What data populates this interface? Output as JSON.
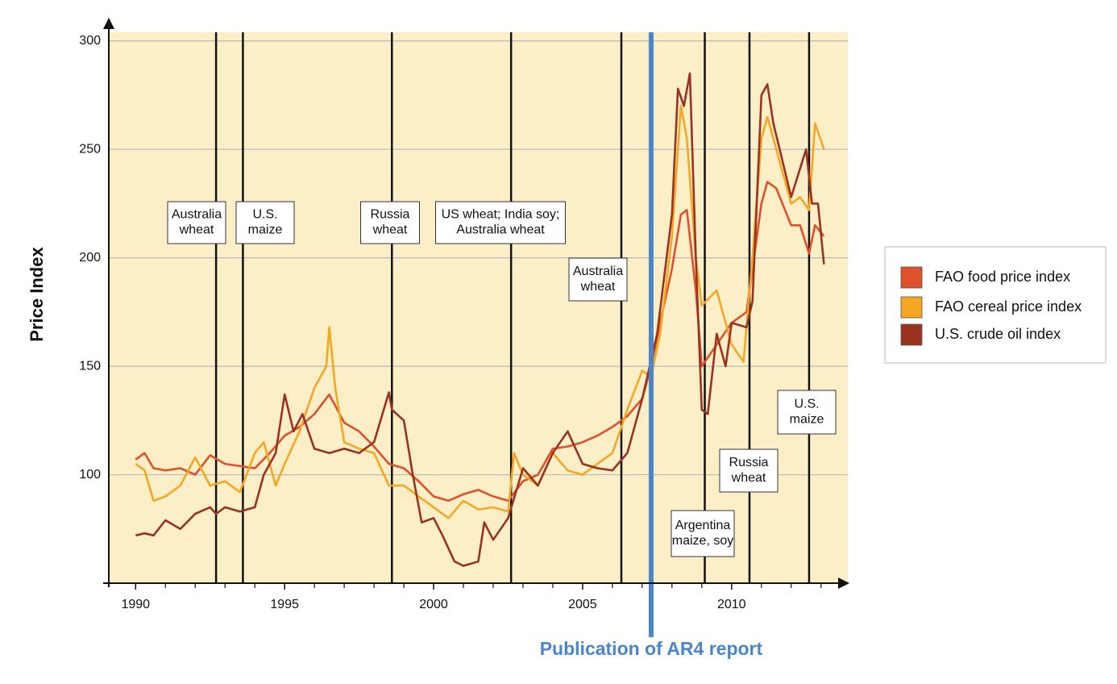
{
  "chart_data": {
    "type": "line",
    "ylabel": "Price Index",
    "xlim": [
      1989.1,
      2013.9
    ],
    "ylim": [
      50,
      304
    ],
    "xticks": [
      1990,
      1995,
      2000,
      2005,
      2010
    ],
    "xminorticks": [
      1991,
      1992,
      1993,
      1994,
      1996,
      1997,
      1998,
      1999,
      2001,
      2002,
      2003,
      2004,
      2006,
      2007,
      2008,
      2009,
      2011,
      2012,
      2013
    ],
    "yticks": [
      100,
      150,
      200,
      250,
      300
    ],
    "grid": true,
    "legend": "right",
    "series": [
      {
        "name": "FAO food price index",
        "color": "#e0502a",
        "x": [
          1990,
          1990.3,
          1990.6,
          1991,
          1991.5,
          1992,
          1992.5,
          1993,
          1993.5,
          1994,
          1994.5,
          1995,
          1995.5,
          1996,
          1996.5,
          1997,
          1997.5,
          1998,
          1998.5,
          1999,
          1999.5,
          2000,
          2000.5,
          2001,
          2001.5,
          2002,
          2002.5,
          2003,
          2003.5,
          2004,
          2004.5,
          2005,
          2005.5,
          2006,
          2006.5,
          2007,
          2007.3,
          2007.6,
          2008,
          2008.3,
          2008.5,
          2008.8,
          2009,
          2009.5,
          2010,
          2010.5,
          2011,
          2011.2,
          2011.5,
          2012,
          2012.3,
          2012.6,
          2012.8,
          2013.1
        ],
        "values": [
          107,
          110,
          103,
          102,
          103,
          100,
          109,
          105,
          104,
          103,
          110,
          118,
          122,
          128,
          137,
          124,
          120,
          113,
          105,
          103,
          97,
          90,
          88,
          91,
          93,
          90,
          88,
          97,
          100,
          112,
          113,
          115,
          118,
          122,
          127,
          135,
          150,
          170,
          195,
          220,
          222,
          185,
          150,
          160,
          170,
          175,
          225,
          235,
          232,
          215,
          215,
          202,
          215,
          210
        ]
      },
      {
        "name": "FAO cereal price index",
        "color": "#f5a623",
        "x": [
          1990,
          1990.3,
          1990.6,
          1991,
          1991.5,
          1992,
          1992.5,
          1993,
          1993.5,
          1994,
          1994.3,
          1994.7,
          1995,
          1995.5,
          1996,
          1996.4,
          1996.5,
          1996.7,
          1997,
          1997.5,
          1998,
          1998.5,
          1999,
          1999.5,
          2000,
          2000.5,
          2001,
          2001.5,
          2002,
          2002.5,
          2002.7,
          2003,
          2003.5,
          2004,
          2004.5,
          2005,
          2005.5,
          2006,
          2006.5,
          2007,
          2007.3,
          2007.6,
          2008,
          2008.3,
          2008.5,
          2008.8,
          2009,
          2009.5,
          2010,
          2010.4,
          2010.7,
          2011,
          2011.2,
          2011.5,
          2012,
          2012.3,
          2012.6,
          2012.8,
          2013.1
        ],
        "values": [
          105,
          102,
          88,
          90,
          95,
          108,
          95,
          97,
          92,
          110,
          115,
          95,
          105,
          120,
          140,
          150,
          168,
          140,
          115,
          112,
          110,
          95,
          95,
          90,
          85,
          80,
          88,
          84,
          85,
          83,
          110,
          100,
          95,
          110,
          102,
          100,
          105,
          110,
          130,
          148,
          145,
          165,
          210,
          270,
          255,
          200,
          178,
          185,
          160,
          152,
          200,
          255,
          265,
          250,
          225,
          228,
          222,
          262,
          250
        ]
      },
      {
        "name": "U.S. crude oil index",
        "color": "#9a3220",
        "x": [
          1990,
          1990.3,
          1990.6,
          1991,
          1991.5,
          1992,
          1992.5,
          1992.7,
          1993,
          1993.5,
          1994,
          1994.3,
          1994.7,
          1995,
          1995.3,
          1995.6,
          1996,
          1996.5,
          1997,
          1997.5,
          1998,
          1998.5,
          1998.6,
          1999,
          1999.3,
          1999.6,
          2000,
          2000.3,
          2000.7,
          2001,
          2001.5,
          2001.7,
          2002,
          2002.5,
          2003,
          2003.5,
          2004,
          2004.5,
          2005,
          2005.5,
          2006,
          2006.5,
          2007,
          2007.5,
          2008,
          2008.2,
          2008.4,
          2008.6,
          2008.8,
          2009,
          2009.2,
          2009.5,
          2009.8,
          2010,
          2010.5,
          2010.7,
          2011,
          2011.2,
          2011.4,
          2011.7,
          2012,
          2012.5,
          2012.7,
          2012.9,
          2013.1
        ],
        "values": [
          72,
          73,
          72,
          79,
          75,
          82,
          85,
          82,
          85,
          83,
          85,
          100,
          110,
          137,
          120,
          128,
          112,
          110,
          112,
          110,
          115,
          138,
          130,
          125,
          100,
          78,
          80,
          72,
          60,
          58,
          60,
          78,
          70,
          80,
          103,
          95,
          110,
          120,
          105,
          103,
          102,
          110,
          135,
          165,
          220,
          278,
          270,
          285,
          200,
          130,
          128,
          165,
          150,
          170,
          168,
          180,
          275,
          280,
          262,
          245,
          228,
          250,
          225,
          225,
          197
        ]
      }
    ],
    "events": [
      {
        "x": 1992.7,
        "label": [
          "Australia",
          "wheat"
        ]
      },
      {
        "x": 1993.6,
        "label": [
          "U.S.",
          "maize"
        ]
      },
      {
        "x": 1998.6,
        "label": [
          "Russia",
          "wheat"
        ]
      },
      {
        "x": 2002.6,
        "label": [
          "US wheat; India soy;",
          "Australia wheat"
        ]
      },
      {
        "x": 2006.3,
        "label": [
          "Australia",
          "wheat"
        ]
      },
      {
        "x": 2009.1,
        "label": [
          "Argentina",
          "maize, soy"
        ]
      },
      {
        "x": 2010.6,
        "label": [
          "Russia",
          "wheat"
        ]
      },
      {
        "x": 2012.6,
        "label": [
          "U.S.",
          "maize"
        ]
      }
    ],
    "highlight": {
      "x": 2007.3,
      "label": "Publication of AR4 report",
      "color": "#4a86c8"
    }
  }
}
